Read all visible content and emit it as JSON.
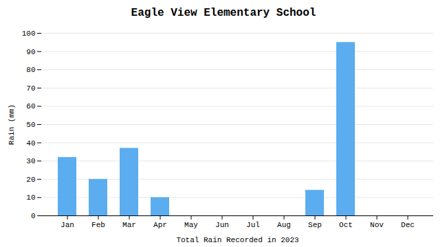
{
  "chart_data": {
    "type": "bar",
    "title": "Eagle View Elementary School",
    "xlabel": "Total Rain Recorded in 2023",
    "ylabel": "Rain (mm)",
    "categories": [
      "Jan",
      "Feb",
      "Mar",
      "Apr",
      "May",
      "Jun",
      "Jul",
      "Aug",
      "Sep",
      "Oct",
      "Nov",
      "Dec"
    ],
    "values": [
      32,
      20,
      37,
      10,
      0,
      0,
      0,
      0,
      14,
      95,
      0,
      0
    ],
    "color": "#5BADF0",
    "ylim": [
      0,
      100
    ],
    "yticks": [
      0,
      10,
      20,
      30,
      40,
      50,
      60,
      70,
      80,
      90,
      100
    ],
    "grid": true
  }
}
